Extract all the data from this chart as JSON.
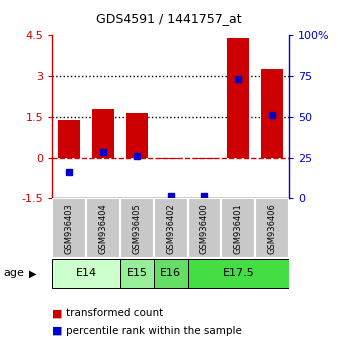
{
  "title": "GDS4591 / 1441757_at",
  "samples": [
    "GSM936403",
    "GSM936404",
    "GSM936405",
    "GSM936402",
    "GSM936400",
    "GSM936401",
    "GSM936406"
  ],
  "red_values": [
    1.4,
    1.8,
    1.65,
    -0.07,
    -0.07,
    4.4,
    3.25
  ],
  "blue_values_left": [
    -0.55,
    0.2,
    0.07,
    -1.42,
    -1.42,
    2.9,
    1.55
  ],
  "ylim_left": [
    -1.5,
    4.5
  ],
  "ylim_right": [
    0,
    100
  ],
  "yticks_left": [
    -1.5,
    0,
    1.5,
    3,
    4.5
  ],
  "yticks_right": [
    0,
    25,
    50,
    75,
    100
  ],
  "yticklabels_left": [
    "-1.5",
    "0",
    "1.5",
    "3",
    "4.5"
  ],
  "yticklabels_right": [
    "0",
    "25",
    "50",
    "75",
    "100%"
  ],
  "hlines": [
    1.5,
    3.0
  ],
  "bar_color": "#cc0000",
  "dot_color": "#0000cc",
  "zero_line_color": "#cc0000",
  "left_axis_color": "#cc0000",
  "right_axis_color": "#0000cc",
  "age_groups": [
    {
      "label": "E14",
      "start": 0,
      "end": 1,
      "color": "#ccffcc"
    },
    {
      "label": "E15",
      "start": 2,
      "end": 2,
      "color": "#99ee99"
    },
    {
      "label": "E16",
      "start": 3,
      "end": 3,
      "color": "#66dd66"
    },
    {
      "label": "E17.5",
      "start": 4,
      "end": 6,
      "color": "#44dd44"
    }
  ],
  "legend_red": "transformed count",
  "legend_blue": "percentile rank within the sample",
  "figsize": [
    3.38,
    3.54
  ],
  "dpi": 100
}
